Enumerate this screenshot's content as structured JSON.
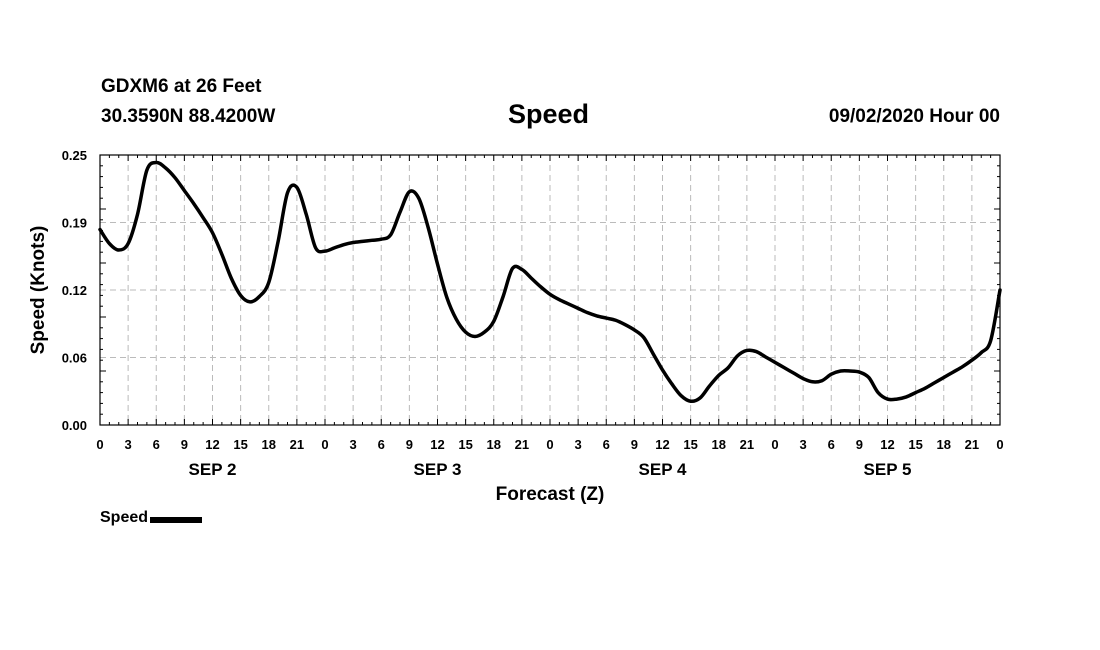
{
  "header": {
    "station": "GDXM6 at 26 Feet",
    "coords": "30.3590N 88.4200W",
    "title": "Speed",
    "datetime": "09/02/2020 Hour 00"
  },
  "chart_data": {
    "type": "line",
    "title": "Speed",
    "xlabel": "Forecast (Z)",
    "ylabel": "Speed (Knots)",
    "ylim": [
      0,
      0.25
    ],
    "xlim": [
      0,
      96
    ],
    "yticks": [
      "0.00",
      "0.06",
      "0.12",
      "0.19",
      "0.25"
    ],
    "ytick_values": [
      0,
      0.0625,
      0.125,
      0.1875,
      0.25
    ],
    "xtick_hours": [
      0,
      3,
      6,
      9,
      12,
      15,
      18,
      21,
      24,
      27,
      30,
      33,
      36,
      39,
      42,
      45,
      48,
      51,
      54,
      57,
      60,
      63,
      66,
      69,
      72,
      75,
      78,
      81,
      84,
      87,
      90,
      93,
      96
    ],
    "xtick_labels": [
      "0",
      "3",
      "6",
      "9",
      "12",
      "15",
      "18",
      "21",
      "0",
      "3",
      "6",
      "9",
      "12",
      "15",
      "18",
      "21",
      "0",
      "3",
      "6",
      "9",
      "12",
      "15",
      "18",
      "21",
      "0",
      "3",
      "6",
      "9",
      "12",
      "15",
      "18",
      "21",
      "0"
    ],
    "day_labels": [
      {
        "label": "SEP 2",
        "hour": 12
      },
      {
        "label": "SEP 3",
        "hour": 36
      },
      {
        "label": "SEP 4",
        "hour": 60
      },
      {
        "label": "SEP 5",
        "hour": 84
      }
    ],
    "grid": true,
    "legend_position": "bottom-left",
    "series": [
      {
        "name": "Speed",
        "color": "#000000",
        "x": [
          0,
          1,
          2,
          3,
          4,
          5,
          6,
          7,
          8,
          9,
          10,
          11,
          12,
          13,
          14,
          15,
          16,
          17,
          18,
          19,
          20,
          21,
          22,
          23,
          24,
          25,
          26,
          27,
          28,
          29,
          30,
          31,
          32,
          33,
          34,
          35,
          36,
          37,
          38,
          39,
          40,
          41,
          42,
          43,
          44,
          45,
          46,
          47,
          48,
          49,
          50,
          51,
          52,
          53,
          54,
          55,
          56,
          57,
          58,
          59,
          60,
          61,
          62,
          63,
          64,
          65,
          66,
          67,
          68,
          69,
          70,
          71,
          72,
          73,
          74,
          75,
          76,
          77,
          78,
          79,
          80,
          81,
          82,
          83,
          84,
          85,
          86,
          87,
          88,
          89,
          90,
          91,
          92,
          93,
          94,
          95,
          96
        ],
        "y": [
          0.181,
          0.168,
          0.162,
          0.168,
          0.195,
          0.236,
          0.243,
          0.238,
          0.229,
          0.217,
          0.205,
          0.192,
          0.178,
          0.158,
          0.136,
          0.12,
          0.114,
          0.119,
          0.132,
          0.17,
          0.215,
          0.22,
          0.195,
          0.164,
          0.161,
          0.164,
          0.167,
          0.169,
          0.17,
          0.171,
          0.172,
          0.176,
          0.197,
          0.216,
          0.21,
          0.183,
          0.149,
          0.118,
          0.098,
          0.086,
          0.082,
          0.086,
          0.096,
          0.119,
          0.145,
          0.144,
          0.136,
          0.128,
          0.121,
          0.116,
          0.112,
          0.108,
          0.104,
          0.101,
          0.099,
          0.097,
          0.093,
          0.088,
          0.081,
          0.066,
          0.051,
          0.038,
          0.027,
          0.022,
          0.025,
          0.036,
          0.046,
          0.053,
          0.064,
          0.069,
          0.068,
          0.063,
          0.058,
          0.053,
          0.048,
          0.043,
          0.04,
          0.041,
          0.047,
          0.05,
          0.05,
          0.049,
          0.044,
          0.03,
          0.024,
          0.024,
          0.026,
          0.03,
          0.034,
          0.039,
          0.044,
          0.049,
          0.054,
          0.06,
          0.067,
          0.078,
          0.125
        ]
      }
    ]
  }
}
